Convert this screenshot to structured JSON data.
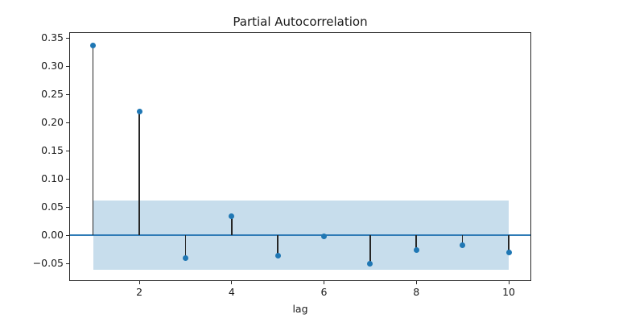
{
  "chart_data": {
    "type": "stem",
    "title": "Partial Autocorrelation",
    "xlabel": "lag",
    "ylabel": "",
    "x": [
      1,
      2,
      3,
      4,
      5,
      6,
      7,
      8,
      9,
      10
    ],
    "values": [
      0.337,
      0.22,
      -0.041,
      0.033,
      -0.037,
      -0.002,
      -0.05,
      -0.027,
      -0.018,
      -0.03
    ],
    "confidence_band": {
      "upper": 0.0615,
      "lower": -0.0615,
      "x_start": 1,
      "x_end": 10
    },
    "zero_line_y": 0,
    "xlim": [
      0.5,
      10.47
    ],
    "ylim": [
      -0.08,
      0.359
    ],
    "x_ticks": [
      {
        "value": 2,
        "label": "2"
      },
      {
        "value": 4,
        "label": "4"
      },
      {
        "value": 6,
        "label": "6"
      },
      {
        "value": 8,
        "label": "8"
      },
      {
        "value": 10,
        "label": "10"
      }
    ],
    "y_ticks": [
      {
        "value": 0.35,
        "label": "0.35"
      },
      {
        "value": 0.3,
        "label": "0.30"
      },
      {
        "value": 0.25,
        "label": "0.25"
      },
      {
        "value": 0.2,
        "label": "0.20"
      },
      {
        "value": 0.15,
        "label": "0.15"
      },
      {
        "value": 0.1,
        "label": "0.10"
      },
      {
        "value": 0.05,
        "label": "0.05"
      },
      {
        "value": 0.0,
        "label": "0.00"
      },
      {
        "value": -0.05,
        "label": "−0.05"
      }
    ],
    "grid": false,
    "legend": null,
    "colors": {
      "marker": "#1f77b4",
      "stem": "#262626",
      "band": "#c7ddec",
      "zero_line": "#2f7bb6",
      "spine": "#262626",
      "text": "#1a1a1a",
      "background": "#ffffff"
    }
  }
}
